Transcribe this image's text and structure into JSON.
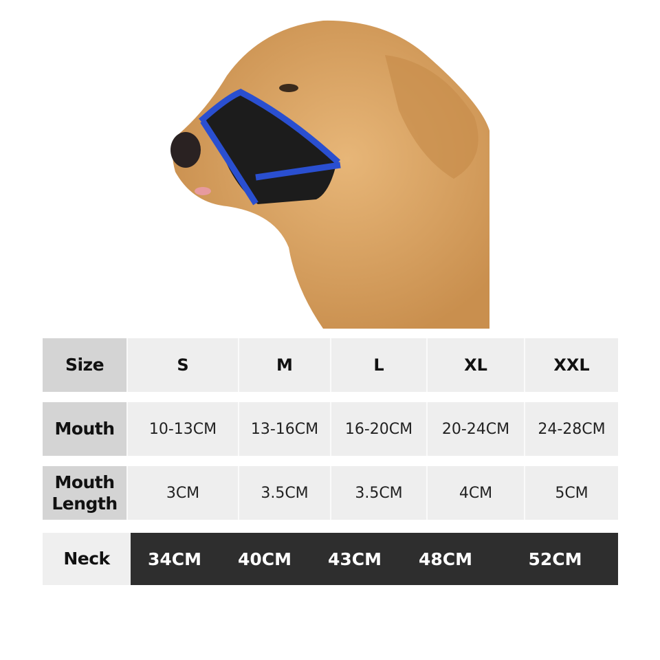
{
  "product_image": {
    "subject": "dog-with-mesh-muzzle",
    "colors": {
      "fur": "#d9a564",
      "muzzle_mesh": "#1c1c1c",
      "muzzle_trim": "#2a4fd0"
    }
  },
  "size_chart": {
    "header": {
      "label": "Size",
      "values": [
        "S",
        "M",
        "L",
        "XL",
        "XXL"
      ]
    },
    "rows": [
      {
        "label": "Mouth",
        "values": [
          "10-13CM",
          "13-16CM",
          "16-20CM",
          "20-24CM",
          "24-28CM"
        ]
      },
      {
        "label": "Mouth Length",
        "values": [
          "3CM",
          "3.5CM",
          "3.5CM",
          "4CM",
          "5CM"
        ]
      },
      {
        "label": "Neck",
        "values": [
          "34CM",
          "40CM",
          "43CM",
          "48CM",
          "52CM"
        ]
      }
    ]
  }
}
